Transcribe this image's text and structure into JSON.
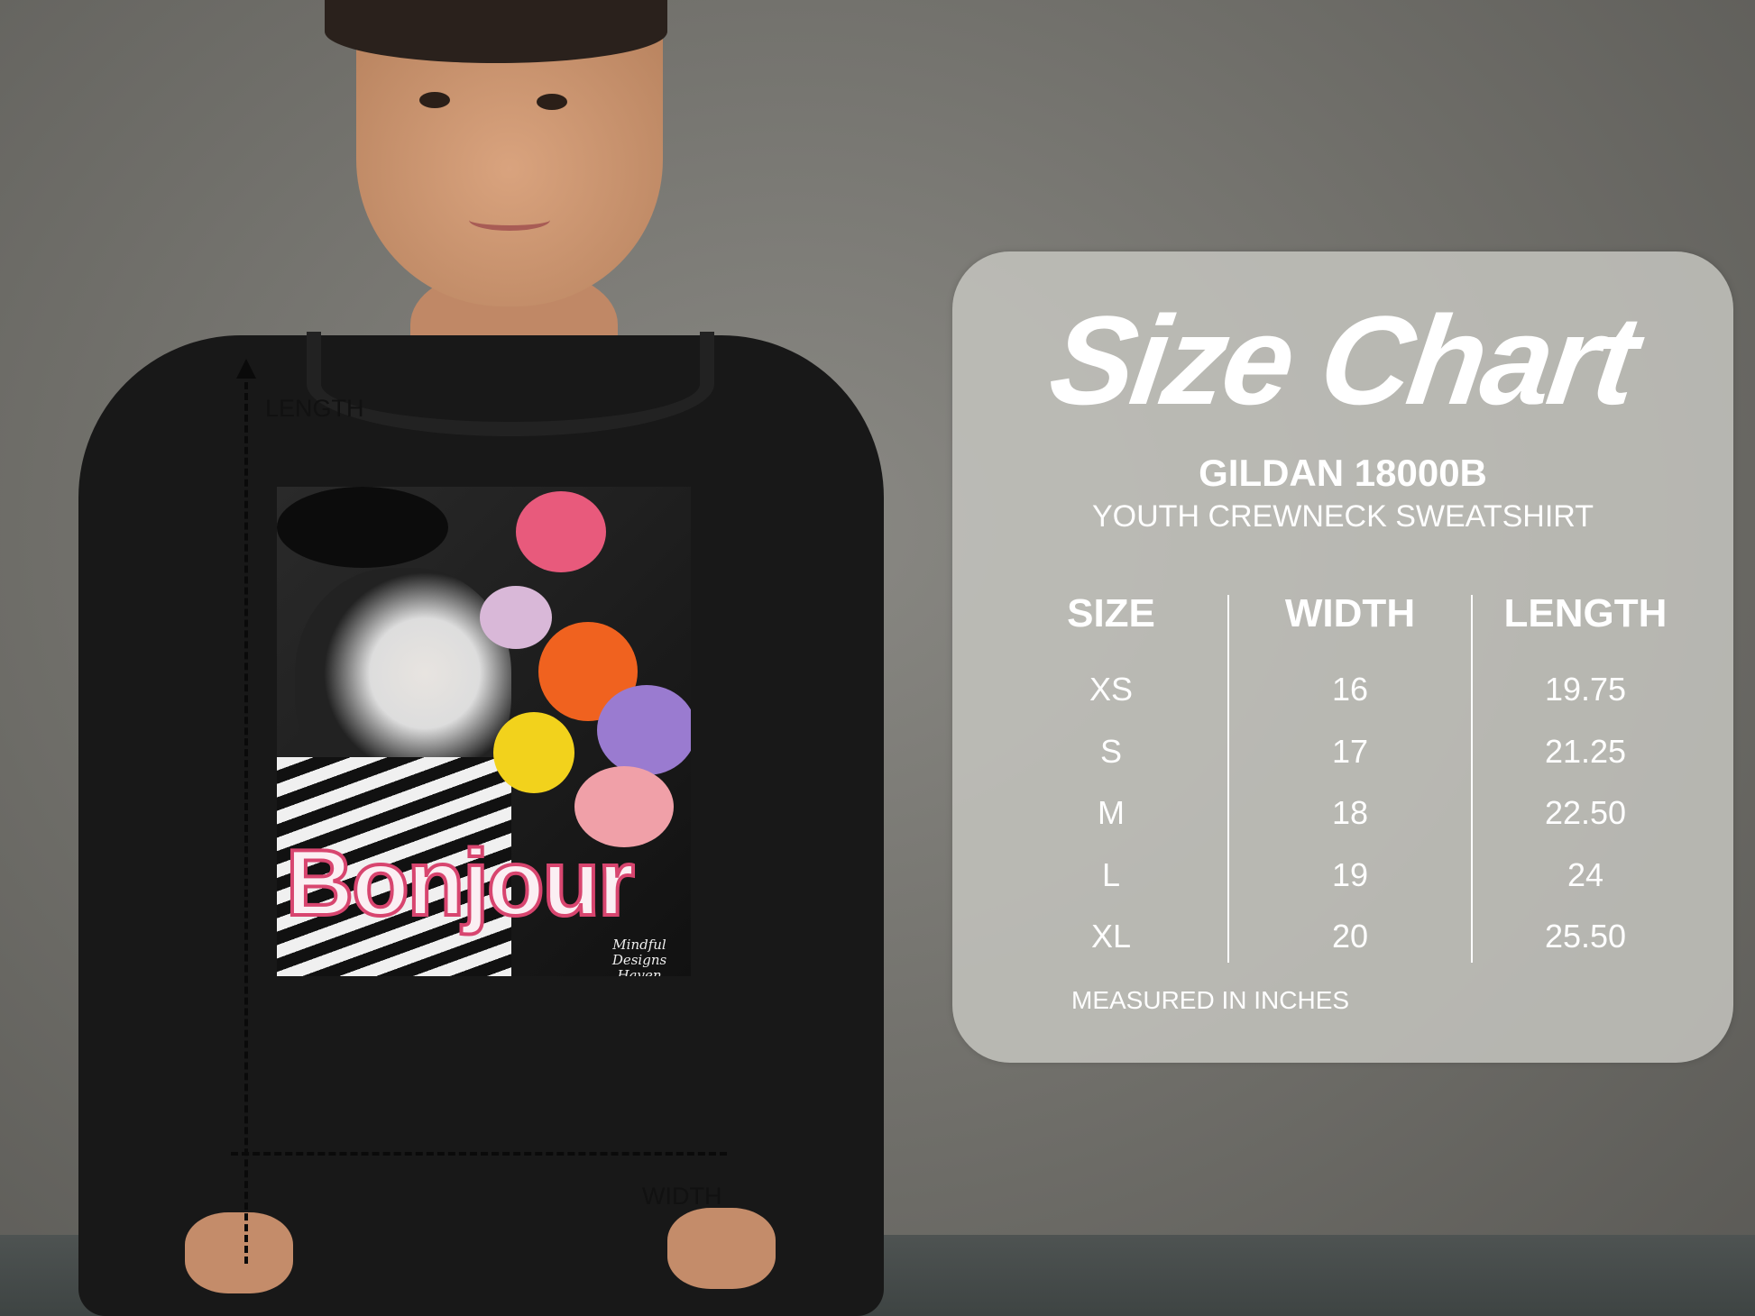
{
  "photo": {
    "measure_labels": {
      "length": "LENGTH",
      "width": "WIDTH"
    },
    "graphic": {
      "headline": "Bonjour",
      "signature_line1": "Mindful Designs",
      "signature_line2": "Haven"
    }
  },
  "size_chart": {
    "title": "Size Chart",
    "brand": "GILDAN 18000B",
    "product": "YOUTH CREWNECK SWEATSHIRT",
    "columns": [
      "SIZE",
      "WIDTH",
      "LENGTH"
    ],
    "rows": [
      {
        "size": "XS",
        "width": "16",
        "length": "19.75"
      },
      {
        "size": "S",
        "width": "17",
        "length": "21.25"
      },
      {
        "size": "M",
        "width": "18",
        "length": "22.50"
      },
      {
        "size": "L",
        "width": "19",
        "length": "24"
      },
      {
        "size": "XL",
        "width": "20",
        "length": "25.50"
      }
    ],
    "note": "MEASURED IN INCHES"
  },
  "colors": {
    "panel": "#c4c4be",
    "text": "#ffffff",
    "shirt": "#181818",
    "accent_pink": "#d8456f"
  }
}
